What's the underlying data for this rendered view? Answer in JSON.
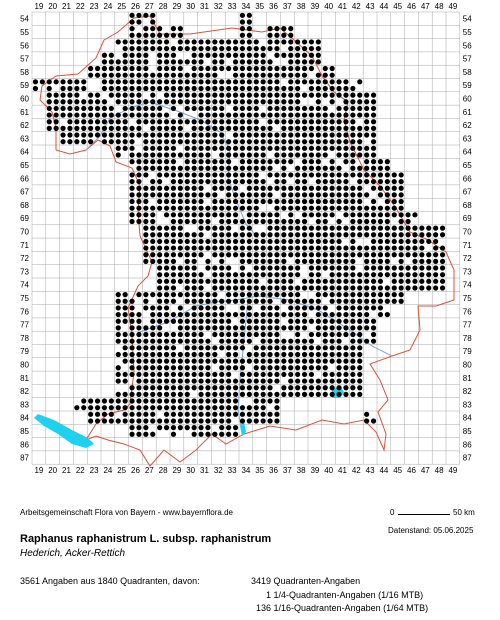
{
  "map": {
    "x_labels": [
      "19",
      "20",
      "21",
      "22",
      "23",
      "24",
      "25",
      "26",
      "27",
      "28",
      "29",
      "30",
      "31",
      "32",
      "33",
      "34",
      "35",
      "36",
      "37",
      "38",
      "39",
      "40",
      "41",
      "42",
      "43",
      "44",
      "45",
      "46",
      "47",
      "48",
      "49"
    ],
    "y_labels": [
      "54",
      "55",
      "56",
      "57",
      "58",
      "59",
      "60",
      "61",
      "62",
      "63",
      "64",
      "65",
      "66",
      "67",
      "68",
      "69",
      "70",
      "71",
      "72",
      "73",
      "74",
      "75",
      "76",
      "77",
      "78",
      "79",
      "80",
      "81",
      "82",
      "83",
      "84",
      "85",
      "86",
      "87"
    ],
    "colors": {
      "grid": "#a8a8a8",
      "border": "#e0513a",
      "river": "#7aa7d8",
      "lake": "#1fd0ef",
      "dot": "#000000"
    },
    "occupied_rows": [
      {
        "row": "54",
        "from": "26",
        "to": "27"
      },
      {
        "row": "54",
        "from": "34",
        "to": "34"
      },
      {
        "row": "55",
        "from": "26",
        "to": "29"
      },
      {
        "row": "55",
        "from": "34",
        "to": "34"
      },
      {
        "row": "55",
        "from": "36",
        "to": "37"
      },
      {
        "row": "56",
        "from": "25",
        "to": "39"
      },
      {
        "row": "57",
        "from": "24",
        "to": "39"
      },
      {
        "row": "58",
        "from": "23",
        "to": "40"
      },
      {
        "row": "59",
        "from": "19",
        "to": "22"
      },
      {
        "row": "59",
        "from": "24",
        "to": "42"
      },
      {
        "row": "60",
        "from": "20",
        "to": "43"
      },
      {
        "row": "61",
        "from": "20",
        "to": "43"
      },
      {
        "row": "62",
        "from": "20",
        "to": "43"
      },
      {
        "row": "63",
        "from": "21",
        "to": "43"
      },
      {
        "row": "64",
        "from": "25",
        "to": "43"
      },
      {
        "row": "65",
        "from": "26",
        "to": "44"
      },
      {
        "row": "66",
        "from": "26",
        "to": "45"
      },
      {
        "row": "67",
        "from": "26",
        "to": "45"
      },
      {
        "row": "68",
        "from": "26",
        "to": "45"
      },
      {
        "row": "69",
        "from": "26",
        "to": "46"
      },
      {
        "row": "70",
        "from": "27",
        "to": "48"
      },
      {
        "row": "71",
        "from": "27",
        "to": "48"
      },
      {
        "row": "72",
        "from": "27",
        "to": "48"
      },
      {
        "row": "73",
        "from": "28",
        "to": "48"
      },
      {
        "row": "74",
        "from": "28",
        "to": "48"
      },
      {
        "row": "75",
        "from": "25",
        "to": "45"
      },
      {
        "row": "76",
        "from": "25",
        "to": "44"
      },
      {
        "row": "77",
        "from": "25",
        "to": "43"
      },
      {
        "row": "78",
        "from": "25",
        "to": "43"
      },
      {
        "row": "79",
        "from": "25",
        "to": "42"
      },
      {
        "row": "80",
        "from": "25",
        "to": "42"
      },
      {
        "row": "81",
        "from": "25",
        "to": "42"
      },
      {
        "row": "82",
        "from": "25",
        "to": "42"
      },
      {
        "row": "83",
        "from": "22",
        "to": "36"
      },
      {
        "row": "84",
        "from": "23",
        "to": "36"
      },
      {
        "row": "84",
        "from": "43",
        "to": "43"
      },
      {
        "row": "85",
        "from": "26",
        "to": "33"
      }
    ]
  },
  "footer": {
    "credit": "Arbeitsgemeinschaft Flora von Bayern - www.bayernflora.de",
    "scale_zero": "0",
    "scale_length": "50 km",
    "date": "Datenstand: 05.06.2025",
    "taxon": "Raphanus raphanistrum L. subsp. raphanistrum",
    "common_names": "Hederich, Acker-Rettich",
    "summary": "3561 Angaben aus 1840 Quadranten, davon:",
    "breakdown": [
      {
        "count": "3419",
        "label": "Quadranten-Angaben"
      },
      {
        "count": "1",
        "label": "1/4-Quadranten-Angaben (1/16 MTB)"
      },
      {
        "count": "136",
        "label": "1/16-Quadranten-Angaben (1/64 MTB)"
      }
    ]
  }
}
